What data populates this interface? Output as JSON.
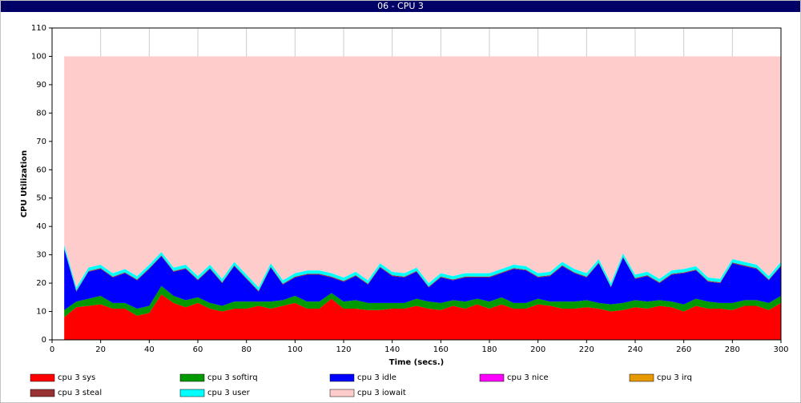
{
  "chart_data": {
    "type": "stacked-area",
    "title": "06 - CPU 3",
    "xlabel": "Time (secs.)",
    "ylabel": "CPU Utilization",
    "x": [
      5,
      10,
      15,
      20,
      25,
      30,
      35,
      40,
      45,
      50,
      55,
      60,
      65,
      70,
      75,
      80,
      85,
      90,
      95,
      100,
      105,
      110,
      115,
      120,
      125,
      130,
      135,
      140,
      145,
      150,
      155,
      160,
      165,
      170,
      175,
      180,
      185,
      190,
      195,
      200,
      205,
      210,
      215,
      220,
      225,
      230,
      235,
      240,
      245,
      250,
      255,
      260,
      265,
      270,
      275,
      280,
      285,
      290,
      295,
      300
    ],
    "xlim": [
      0,
      300
    ],
    "xticks": [
      0,
      20,
      40,
      60,
      80,
      100,
      120,
      140,
      160,
      180,
      200,
      220,
      240,
      260,
      280,
      300
    ],
    "ylim": [
      0,
      110
    ],
    "yticks": [
      0,
      10,
      20,
      30,
      40,
      50,
      60,
      70,
      80,
      90,
      100,
      110
    ],
    "grid": true,
    "series": [
      {
        "name": "cpu 3 sys",
        "color": "#ff0000",
        "values": [
          8,
          11.5,
          12,
          12.5,
          11,
          11,
          8.5,
          9.5,
          16,
          13,
          11.5,
          13,
          11,
          10,
          11,
          11,
          12,
          11,
          12,
          13,
          11,
          11,
          14.5,
          11,
          11,
          10.5,
          10.5,
          11,
          11,
          12,
          11,
          10.5,
          12,
          11,
          12.5,
          11,
          12.5,
          11,
          11,
          12.5,
          12,
          11,
          11,
          11.5,
          11,
          10,
          10.5,
          11.5,
          11,
          12,
          11.5,
          10,
          12,
          11,
          11,
          10.5,
          12,
          12,
          10.5,
          13
        ]
      },
      {
        "name": "cpu 3 softirq",
        "color": "#009900",
        "values": [
          2.5,
          2,
          2.5,
          3,
          2,
          2,
          2.5,
          2.5,
          3,
          2.5,
          2.5,
          2,
          2,
          2,
          2.5,
          2.5,
          1.5,
          2.5,
          2,
          2.5,
          2.5,
          2.5,
          2,
          2.5,
          3,
          2.5,
          2.5,
          2,
          2,
          2.5,
          2.5,
          2.5,
          2,
          2.5,
          2,
          2.5,
          2.5,
          2,
          2,
          2,
          1.5,
          2.5,
          2.5,
          2.5,
          2,
          2.5,
          2.5,
          2.5,
          2.5,
          2,
          2,
          2.5,
          2.5,
          2.5,
          2,
          2.5,
          2,
          2,
          2.5,
          2.5
        ]
      },
      {
        "name": "cpu 3 idle",
        "color": "#0000ff",
        "values": [
          21.5,
          3.5,
          9.5,
          9.5,
          9,
          10.5,
          10,
          13,
          10.5,
          8.5,
          11,
          6,
          12,
          8,
          12.5,
          8,
          3.5,
          12,
          5.5,
          6.5,
          9.5,
          9.5,
          5.5,
          7,
          8.5,
          6.5,
          12.5,
          9.5,
          9,
          9.5,
          5,
          9,
          7,
          8.5,
          7.5,
          8.5,
          8.5,
          12,
          11.5,
          7.5,
          9,
          12.5,
          10,
          8,
          14,
          6,
          16,
          7.5,
          9,
          6,
          9.5,
          11,
          10,
          7,
          7,
          14,
          12,
          11,
          8,
          10.5
        ]
      },
      {
        "name": "cpu 3 nice",
        "color": "#ff00ff",
        "values": [
          0,
          0,
          0,
          0,
          0,
          0,
          0,
          0,
          0,
          0,
          0,
          0,
          0,
          0,
          0,
          0,
          0,
          0,
          0,
          0,
          0,
          0,
          0,
          0,
          0,
          0,
          0,
          0,
          0,
          0,
          0,
          0,
          0,
          0,
          0,
          0,
          0,
          0,
          0,
          0,
          0,
          0,
          0,
          0,
          0,
          0,
          0,
          0,
          0,
          0,
          0,
          0,
          0,
          0,
          0,
          0,
          0,
          0,
          0,
          0
        ]
      },
      {
        "name": "cpu 3 irq",
        "color": "#e69900",
        "values": [
          0,
          0,
          0,
          0,
          0,
          0,
          0,
          0,
          0,
          0,
          0,
          0,
          0,
          0,
          0,
          0,
          0,
          0,
          0,
          0,
          0,
          0,
          0,
          0,
          0,
          0,
          0,
          0,
          0,
          0,
          0,
          0,
          0,
          0,
          0,
          0,
          0,
          0,
          0,
          0,
          0,
          0,
          0,
          0,
          0,
          0,
          0,
          0,
          0,
          0,
          0,
          0,
          0,
          0,
          0,
          0,
          0,
          0,
          0,
          0
        ]
      },
      {
        "name": "cpu 3 steal",
        "color": "#993333",
        "values": [
          0.3,
          0.3,
          0.3,
          0.3,
          0.3,
          0.3,
          0.3,
          0.3,
          0.3,
          0.3,
          0.3,
          0.3,
          0.3,
          0.3,
          0.3,
          0.3,
          0.3,
          0.3,
          0.3,
          0.3,
          0.3,
          0.3,
          0.3,
          0.3,
          0.3,
          0.3,
          0.3,
          0.3,
          0.3,
          0.3,
          0.3,
          0.3,
          0.3,
          0.3,
          0.3,
          0.3,
          0.3,
          0.3,
          0.3,
          0.3,
          0.3,
          0.3,
          0.3,
          0.3,
          0.3,
          0.3,
          0.3,
          0.3,
          0.3,
          0.3,
          0.3,
          0.3,
          0.3,
          0.3,
          0.3,
          0.3,
          0.3,
          0.3,
          0.3,
          0.3
        ]
      },
      {
        "name": "cpu 3 user",
        "color": "#00ffff",
        "values": [
          1.2,
          1.2,
          1.2,
          1.2,
          1.2,
          1.2,
          1.2,
          1.2,
          1.2,
          1.2,
          1.2,
          1.2,
          1.2,
          1.2,
          1.2,
          1.2,
          1.2,
          1.2,
          1.2,
          1.2,
          1.2,
          1.2,
          1.2,
          1.2,
          1.2,
          1.2,
          1.2,
          1.2,
          1.2,
          1.2,
          1.2,
          1.2,
          1.2,
          1.2,
          1.2,
          1.2,
          1.2,
          1.2,
          1.2,
          1.2,
          1.2,
          1.2,
          1.2,
          1.2,
          1.2,
          1.2,
          1.2,
          1.2,
          1.2,
          1.2,
          1.2,
          1.2,
          1.2,
          1.2,
          1.2,
          1.2,
          1.2,
          1.2,
          1.2,
          1.2
        ]
      },
      {
        "name": "cpu 3 iowait",
        "color": "#ffcccc",
        "values": [
          66.5,
          81.5,
          74.5,
          73.5,
          76.5,
          75,
          77.5,
          73.5,
          69,
          74.5,
          73.5,
          77.5,
          73.5,
          78.5,
          72.5,
          77,
          81.5,
          73,
          79,
          76.5,
          75.5,
          75.5,
          76.5,
          78,
          76,
          79,
          73,
          76,
          76.5,
          74.5,
          80,
          76.5,
          77.5,
          76.5,
          76.5,
          76.5,
          75,
          73.5,
          74,
          76.5,
          76,
          72.5,
          75,
          76.5,
          71.5,
          80,
          69.5,
          77,
          76,
          78.5,
          75.5,
          75,
          74,
          78,
          78.5,
          71.5,
          72.5,
          73.5,
          77.5,
          72.5
        ]
      }
    ]
  }
}
